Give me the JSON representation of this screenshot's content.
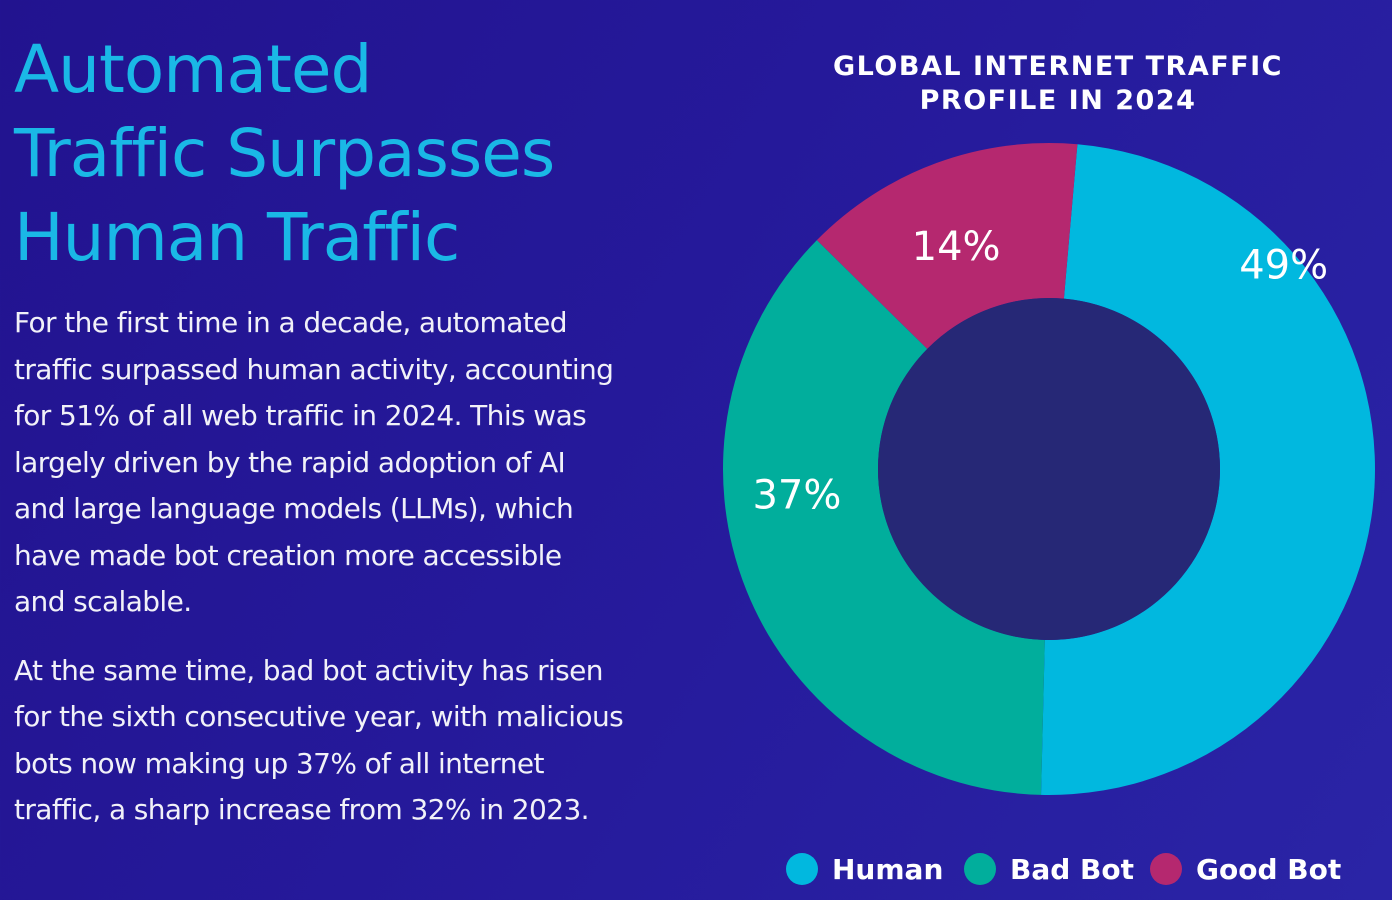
{
  "headline": {
    "lines": [
      "Automated",
      "Traffic Surpasses",
      "Human Traffic"
    ]
  },
  "paragraphs": [
    {
      "lines": [
        "For the first time in a decade, automated",
        "traffic surpassed human activity, accounting",
        "for 51% of all web traffic in 2024. This was",
        "largely driven by the rapid adoption of AI",
        "and large language models (LLMs), which",
        "have made bot creation more accessible",
        "and scalable."
      ]
    },
    {
      "lines": [
        "At the same time, bad bot activity has risen",
        "for the sixth consecutive year, with malicious",
        "bots now making up 37% of all internet",
        "traffic, a sharp increase from 32% in 2023."
      ]
    }
  ],
  "colors": {
    "human": "#01b8df",
    "bad_bot": "#01ae9c",
    "good_bot": "#b5286f",
    "hole": "#262876"
  },
  "chart_data": {
    "type": "pie",
    "variant": "donut",
    "title": "GLOBAL INTERNET TRAFFIC PROFILE IN 2024",
    "title_lines": [
      "GLOBAL INTERNET TRAFFIC",
      "PROFILE IN 2024"
    ],
    "unit": "%",
    "slices": [
      {
        "name": "Human",
        "value": 49,
        "label": "49%",
        "color": "#01b8df"
      },
      {
        "name": "Bad Bot",
        "value": 37,
        "label": "37%",
        "color": "#01ae9c"
      },
      {
        "name": "Good Bot",
        "value": 14,
        "label": "14%",
        "color": "#b5286f"
      }
    ],
    "start_angle_deg": 5,
    "direction": "clockwise",
    "legend_position": "bottom"
  }
}
